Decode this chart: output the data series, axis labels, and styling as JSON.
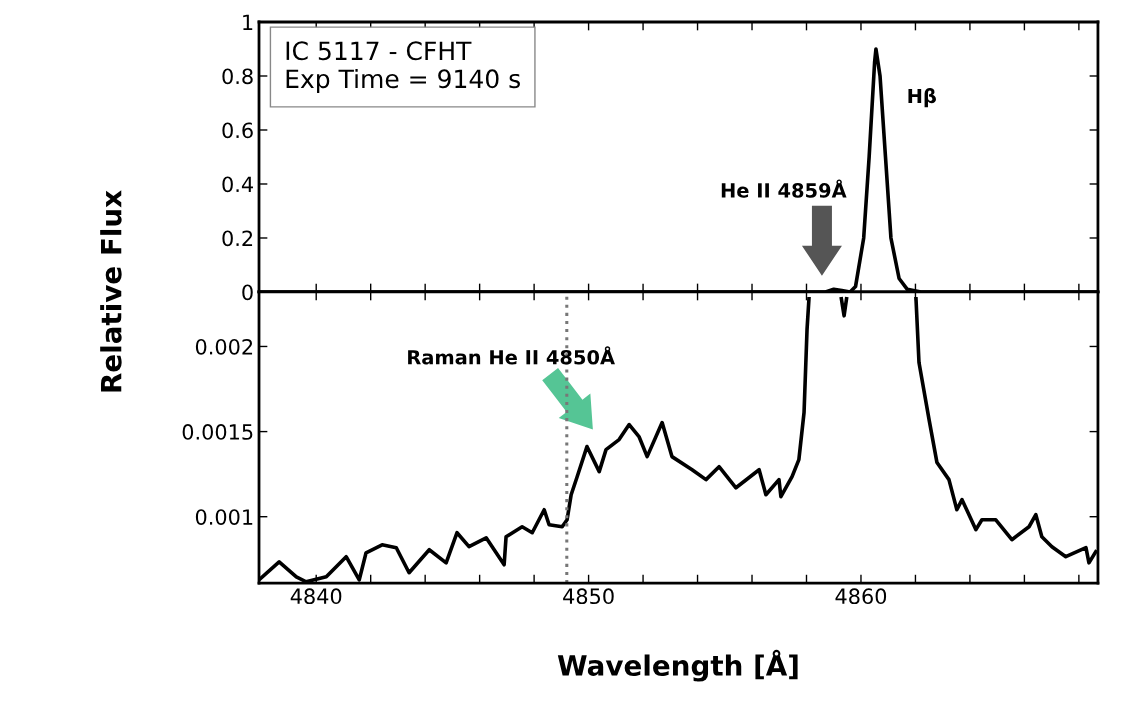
{
  "chart_data": [
    {
      "type": "line",
      "ylabel": "Relative Flux",
      "xlim": [
        4837.9,
        4868.7
      ],
      "ylim": [
        0,
        1
      ],
      "yticks": [
        0,
        0.2,
        0.4,
        0.6,
        0.8,
        1
      ],
      "xticks": [
        {
          "value": 4840,
          "label": null
        },
        {
          "value": 4842,
          "label": null
        },
        {
          "value": 4844,
          "label": null
        },
        {
          "value": 4846,
          "label": null
        },
        {
          "value": 4848,
          "label": null
        },
        {
          "value": 4850,
          "label": null
        },
        {
          "value": 4852,
          "label": null
        },
        {
          "value": 4854,
          "label": null
        },
        {
          "value": 4856,
          "label": null
        },
        {
          "value": 4858,
          "label": null
        },
        {
          "value": 4860,
          "label": null
        },
        {
          "value": 4862,
          "label": null
        },
        {
          "value": 4864,
          "label": null
        },
        {
          "value": 4866,
          "label": null
        },
        {
          "value": 4868,
          "label": null
        }
      ],
      "tick_labels": "y",
      "grid": false,
      "legend": false,
      "x": [
        4837.9,
        4858.7,
        4859.0,
        4859.3,
        4859.6,
        4859.8,
        4860.1,
        4860.3,
        4860.5,
        4860.55,
        4860.7,
        4860.9,
        4861.1,
        4861.4,
        4861.7,
        4862.2,
        4868.7
      ],
      "series": [
        {
          "color": "#000000",
          "values": [
            0,
            0,
            0.01,
            0.005,
            0,
            0.02,
            0.2,
            0.5,
            0.85,
            0.9,
            0.8,
            0.5,
            0.2,
            0.05,
            0.01,
            0,
            0
          ]
        }
      ],
      "annotations": [
        "IC 5117 - CFHT\nExp Time = 9140 s",
        "He II 4859Å",
        "Hβ"
      ]
    },
    {
      "type": "line",
      "xlabel": "Wavelength [Å]",
      "xlim": [
        4837.9,
        4868.7
      ],
      "ylim": [
        0.00061,
        0.00232
      ],
      "yticks": [
        {
          "value": 0.001,
          "label": "0.001"
        },
        {
          "value": 0.0015,
          "label": "0.0015"
        },
        {
          "value": 0.002,
          "label": "0.002"
        }
      ],
      "xticks": [
        4840,
        {
          "value": 4842,
          "label": null
        },
        {
          "value": 4844,
          "label": null
        },
        {
          "value": 4846,
          "label": null
        },
        {
          "value": 4848,
          "label": null
        },
        4850,
        {
          "value": 4852,
          "label": null
        },
        {
          "value": 4854,
          "label": null
        },
        {
          "value": 4856,
          "label": null
        },
        {
          "value": 4858,
          "label": null
        },
        4860,
        {
          "value": 4862,
          "label": null
        },
        {
          "value": 4864,
          "label": null
        },
        {
          "value": 4866,
          "label": null
        },
        {
          "value": 4868,
          "label": null
        }
      ],
      "grid": false,
      "legend": false,
      "x": [
        4837.9,
        4838.64,
        4839.27,
        4839.63,
        4840.37,
        4841.1,
        4841.58,
        4841.83,
        4842.42,
        4842.94,
        4843.41,
        4844.15,
        4844.77,
        4845.17,
        4845.61,
        4846.24,
        4846.9,
        4846.97,
        4847.56,
        4847.93,
        4848.37,
        4848.55,
        4849.03,
        4849.21,
        4849.36,
        4849.58,
        4849.94,
        4850.39,
        4850.64,
        4851.12,
        4851.49,
        4851.85,
        4852.15,
        4852.7,
        4853.06,
        4853.8,
        4854.31,
        4854.79,
        4855.41,
        4856.26,
        4856.51,
        4856.99,
        4857.06,
        4857.47,
        4857.72,
        4857.91,
        4858.02,
        4858.09,
        4858.6,
        4859.28,
        4859.38,
        4859.47,
        4861.0,
        4862.02,
        4862.13,
        4862.5,
        4862.79,
        4863.23,
        4863.52,
        4863.71,
        4864.22,
        4864.44,
        4864.95,
        4865.54,
        4866.17,
        4866.42,
        4866.64,
        4867.01,
        4867.52,
        4868.26,
        4868.37,
        4868.62
      ],
      "series": [
        {
          "color": "#000000",
          "values": [
            0.000629,
            0.000735,
            0.000647,
            0.000618,
            0.000647,
            0.000765,
            0.000629,
            0.000788,
            0.000835,
            0.000818,
            0.000671,
            0.000806,
            0.000729,
            0.000906,
            0.000824,
            0.000876,
            0.000718,
            0.000882,
            0.000941,
            0.000906,
            0.001041,
            0.000953,
            0.000941,
            0.000982,
            0.001129,
            0.001235,
            0.001412,
            0.001265,
            0.001394,
            0.001453,
            0.001541,
            0.001471,
            0.001353,
            0.001553,
            0.001353,
            0.001276,
            0.001218,
            0.001294,
            0.00117,
            0.001276,
            0.001129,
            0.001218,
            0.001118,
            0.001235,
            0.001335,
            0.001612,
            0.0021,
            0.00228,
            null,
            0.00228,
            0.00218,
            0.00228,
            null,
            0.00228,
            0.001906,
            0.00157,
            0.001318,
            0.001218,
            0.001041,
            0.0011,
            0.000924,
            0.000982,
            0.000982,
            0.000865,
            0.000941,
            0.001012,
            0.000882,
            0.000824,
            0.000765,
            0.000818,
            0.000729,
            0.000794
          ]
        }
      ],
      "ref_lines": [
        {
          "axis": "x",
          "value": 4849.2,
          "color": "#777777",
          "line_style": "dotted"
        }
      ],
      "annotations": [
        "Raman He II 4850Å"
      ]
    }
  ]
}
